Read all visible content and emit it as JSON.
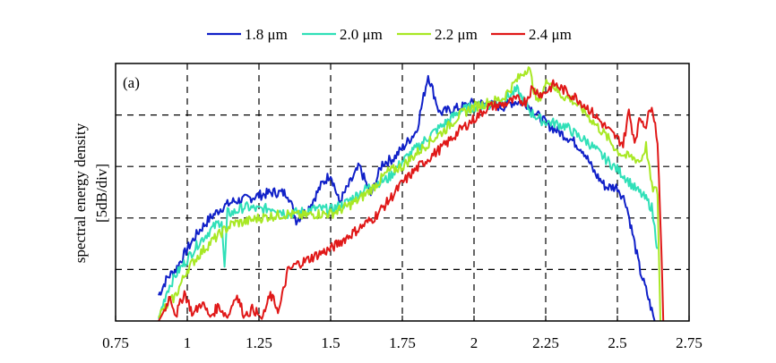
{
  "chart_data": {
    "type": "line",
    "title": "",
    "panel_label": "(a)",
    "xlabel": "",
    "ylabel_lines": [
      "spectral energy density",
      "[5dB/div]"
    ],
    "xlim": [
      0.75,
      2.75
    ],
    "ylim": [
      0,
      25
    ],
    "x_ticks": [
      0.75,
      1,
      1.25,
      1.5,
      1.75,
      2,
      2.25,
      2.5,
      2.75
    ],
    "x_tick_labels": [
      "0.75",
      "1",
      "1.25",
      "1.5",
      "1.75",
      "2",
      "2.25",
      "2.5",
      "2.75"
    ],
    "y_grid": [
      5,
      10,
      15,
      20
    ],
    "grid": true,
    "legend_position": "top-center",
    "series": [
      {
        "name": "1.8 μm",
        "color": "#1020c8",
        "x": [
          0.9,
          0.93,
          0.96,
          1.0,
          1.04,
          1.08,
          1.12,
          1.16,
          1.2,
          1.25,
          1.3,
          1.35,
          1.38,
          1.42,
          1.47,
          1.5,
          1.53,
          1.57,
          1.6,
          1.64,
          1.68,
          1.72,
          1.76,
          1.8,
          1.84,
          1.88,
          1.92,
          1.96,
          2.0,
          2.05,
          2.1,
          2.14,
          2.18,
          2.22,
          2.26,
          2.3,
          2.34,
          2.38,
          2.42,
          2.46,
          2.5,
          2.53,
          2.56,
          2.58,
          2.6,
          2.62,
          2.63
        ],
        "y": [
          2.5,
          4.2,
          5.0,
          7.0,
          8.7,
          10.0,
          11.0,
          11.6,
          11.8,
          12.2,
          12.5,
          12.4,
          9.8,
          10.8,
          13.3,
          14.3,
          11.5,
          13.5,
          15.0,
          12.2,
          15.3,
          15.8,
          17.1,
          18.5,
          23.9,
          20.2,
          20.5,
          20.8,
          21.2,
          21.0,
          20.8,
          21.3,
          21.2,
          20.0,
          19.0,
          18.3,
          17.6,
          16.6,
          14.4,
          13.0,
          13.0,
          11.5,
          7.5,
          4.8,
          3.0,
          1.0,
          0
        ]
      },
      {
        "name": "2.0 μm",
        "color": "#30e0b8",
        "x": [
          0.9,
          0.93,
          0.96,
          1.0,
          1.04,
          1.08,
          1.12,
          1.13,
          1.14,
          1.16,
          1.2,
          1.25,
          1.3,
          1.35,
          1.4,
          1.45,
          1.5,
          1.55,
          1.6,
          1.65,
          1.7,
          1.75,
          1.8,
          1.85,
          1.9,
          1.95,
          2.0,
          2.05,
          2.1,
          2.15,
          2.2,
          2.24,
          2.28,
          2.32,
          2.36,
          2.4,
          2.44,
          2.48,
          2.52,
          2.56,
          2.58,
          2.6,
          2.62,
          2.63,
          2.64
        ],
        "y": [
          0.2,
          3.0,
          4.5,
          6.0,
          7.6,
          8.8,
          9.8,
          5.0,
          10.5,
          10.5,
          11.1,
          10.8,
          11.0,
          10.4,
          10.6,
          10.9,
          10.8,
          11.4,
          12.4,
          13.3,
          13.8,
          15.5,
          16.8,
          18.1,
          19.2,
          20.4,
          20.8,
          21.0,
          21.4,
          22.4,
          20.2,
          19.4,
          19.2,
          18.9,
          18.0,
          17.3,
          16.2,
          15.2,
          14.2,
          12.9,
          12.4,
          11.8,
          11.0,
          9.0,
          7.0
        ]
      },
      {
        "name": "2.2 μm",
        "color": "#a8e824",
        "x": [
          0.9,
          0.93,
          0.96,
          1.0,
          1.04,
          1.08,
          1.12,
          1.16,
          1.2,
          1.25,
          1.3,
          1.35,
          1.4,
          1.45,
          1.5,
          1.55,
          1.6,
          1.65,
          1.7,
          1.75,
          1.8,
          1.85,
          1.9,
          1.95,
          2.0,
          2.05,
          2.1,
          2.15,
          2.19,
          2.22,
          2.26,
          2.3,
          2.34,
          2.38,
          2.42,
          2.46,
          2.5,
          2.53,
          2.56,
          2.58,
          2.6,
          2.62,
          2.64,
          2.65
        ],
        "y": [
          0.5,
          1.5,
          2.5,
          5.0,
          6.4,
          7.6,
          8.6,
          9.5,
          9.6,
          10.0,
          10.2,
          10.4,
          10.2,
          10.4,
          10.4,
          11.0,
          11.8,
          13.0,
          14.5,
          15.0,
          16.3,
          17.5,
          18.6,
          20.0,
          20.8,
          21.2,
          21.6,
          23.4,
          24.7,
          21.2,
          23.5,
          22.0,
          21.5,
          20.5,
          19.2,
          18.0,
          16.5,
          16.0,
          15.8,
          15.5,
          17.0,
          13.0,
          12.5,
          0
        ]
      },
      {
        "name": "2.4 μm",
        "color": "#e01818",
        "x": [
          0.9,
          0.92,
          0.94,
          0.96,
          0.99,
          1.02,
          1.05,
          1.08,
          1.11,
          1.14,
          1.17,
          1.2,
          1.23,
          1.26,
          1.29,
          1.32,
          1.35,
          1.38,
          1.41,
          1.45,
          1.5,
          1.55,
          1.6,
          1.65,
          1.7,
          1.75,
          1.8,
          1.85,
          1.9,
          1.95,
          2.0,
          2.05,
          2.1,
          2.15,
          2.18,
          2.2,
          2.24,
          2.28,
          2.32,
          2.36,
          2.4,
          2.44,
          2.48,
          2.52,
          2.54,
          2.56,
          2.58,
          2.6,
          2.62,
          2.64,
          2.65,
          2.66
        ],
        "y": [
          0,
          1.0,
          2.5,
          0.5,
          2.8,
          0.6,
          1.8,
          0.4,
          1.5,
          0.3,
          2.6,
          0.5,
          1.2,
          0.2,
          2.5,
          1.0,
          4.8,
          5.5,
          5.8,
          6.4,
          7.0,
          8.0,
          9.0,
          10.0,
          11.6,
          13.4,
          14.8,
          16.0,
          17.1,
          18.5,
          19.6,
          20.8,
          21.0,
          21.5,
          21.3,
          22.5,
          22.0,
          23.0,
          22.3,
          21.6,
          20.6,
          19.4,
          18.2,
          17.2,
          20.3,
          17.5,
          19.7,
          19.0,
          21.2,
          17.5,
          10.0,
          0
        ]
      }
    ]
  }
}
